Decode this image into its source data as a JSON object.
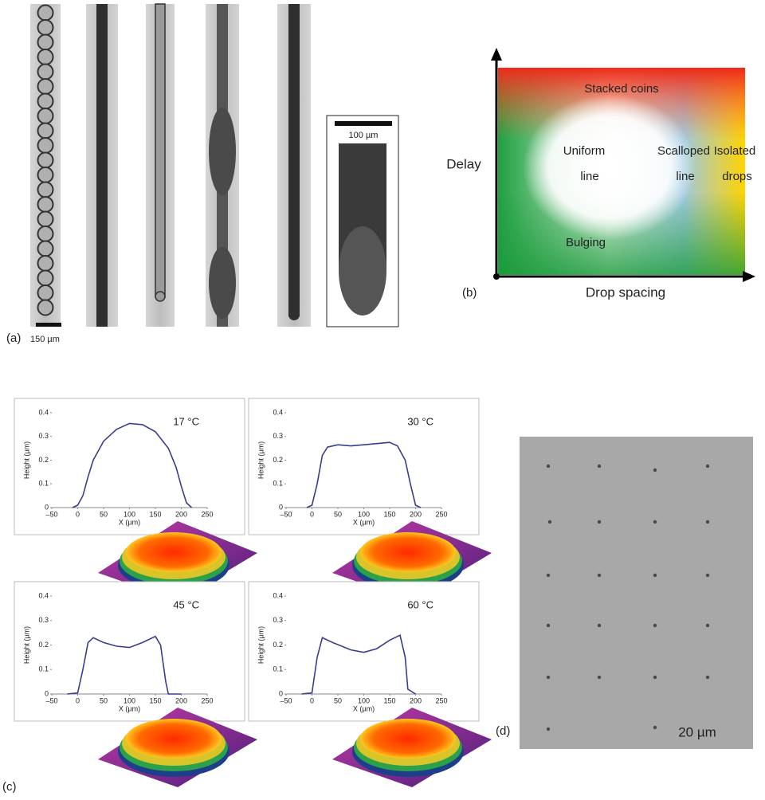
{
  "panel_a": {
    "label": "(a)",
    "scale_bar": "150 µm",
    "inset_scale_bar": "100 µm"
  },
  "panel_b": {
    "label": "(b)",
    "x_axis": "Drop spacing",
    "y_axis": "Delay",
    "regions": [
      "Stacked coins",
      "Uniform",
      "line",
      "Scalloped",
      "line",
      "Isolated",
      "drops",
      "Bulging"
    ]
  },
  "panel_c": {
    "label": "(c)"
  },
  "panel_d": {
    "label": "(d)",
    "scale_bar": "20 µm"
  },
  "chart_data": [
    {
      "type": "line",
      "title": "17 °C",
      "x_label": "X (µm)",
      "y_label": "Height (µm)",
      "x": [
        -10,
        0,
        10,
        20,
        30,
        50,
        75,
        100,
        125,
        150,
        175,
        190,
        200,
        210,
        220
      ],
      "series": [
        {
          "color": "#3a3d8f",
          "values": [
            0,
            0.01,
            0.05,
            0.13,
            0.2,
            0.28,
            0.33,
            0.355,
            0.35,
            0.32,
            0.25,
            0.17,
            0.09,
            0.02,
            0
          ]
        }
      ],
      "xlim": [
        -50,
        250
      ],
      "ylim": [
        0,
        0.4
      ],
      "xticks": [
        {
          "value": -50,
          "label": "–50"
        },
        0,
        50,
        100,
        150,
        200,
        250
      ],
      "yticks": [
        0,
        0.1,
        0.2,
        0.3,
        0.4
      ]
    },
    {
      "type": "line",
      "title": "30 °C",
      "x_label": "X (µm)",
      "y_label": "Height (µm)",
      "x": [
        -10,
        0,
        10,
        20,
        30,
        50,
        75,
        100,
        125,
        150,
        165,
        180,
        190,
        200,
        210
      ],
      "series": [
        {
          "color": "#3a3d8f",
          "values": [
            0,
            0.01,
            0.1,
            0.22,
            0.255,
            0.265,
            0.26,
            0.265,
            0.27,
            0.275,
            0.26,
            0.2,
            0.1,
            0.01,
            0
          ]
        }
      ],
      "xlim": [
        -50,
        250
      ],
      "ylim": [
        0,
        0.4
      ],
      "xticks": [
        {
          "value": -50,
          "label": "–50"
        },
        0,
        50,
        100,
        150,
        200,
        250
      ],
      "yticks": [
        0,
        0.1,
        0.2,
        0.3,
        0.4
      ]
    },
    {
      "type": "line",
      "title": "45 °C",
      "x_label": "X (µm)",
      "y_label": "Height (µm)",
      "x": [
        -20,
        0,
        10,
        20,
        30,
        50,
        75,
        100,
        125,
        150,
        160,
        170,
        175,
        200
      ],
      "series": [
        {
          "color": "#3a3d8f",
          "values": [
            0,
            0.005,
            0.1,
            0.21,
            0.23,
            0.21,
            0.195,
            0.19,
            0.21,
            0.235,
            0.2,
            0.05,
            0,
            0
          ]
        }
      ],
      "xlim": [
        -50,
        250
      ],
      "ylim": [
        0,
        0.4
      ],
      "xticks": [
        {
          "value": -50,
          "label": "–50"
        },
        0,
        50,
        100,
        150,
        200,
        250
      ],
      "yticks": [
        0,
        0.1,
        0.2,
        0.3,
        0.4
      ]
    },
    {
      "type": "line",
      "title": "60 °C",
      "x_label": "X (µm)",
      "y_label": "Height (µm)",
      "x": [
        -20,
        0,
        10,
        20,
        40,
        75,
        100,
        125,
        150,
        170,
        180,
        185,
        200
      ],
      "series": [
        {
          "color": "#3a3d8f",
          "values": [
            0,
            0.005,
            0.15,
            0.23,
            0.21,
            0.18,
            0.17,
            0.185,
            0.22,
            0.24,
            0.15,
            0.02,
            0
          ]
        }
      ],
      "xlim": [
        -50,
        250
      ],
      "ylim": [
        0,
        0.4
      ],
      "xticks": [
        {
          "value": -50,
          "label": "–50"
        },
        0,
        50,
        100,
        150,
        200,
        250
      ],
      "yticks": [
        0,
        0.1,
        0.2,
        0.3,
        0.4
      ]
    }
  ]
}
